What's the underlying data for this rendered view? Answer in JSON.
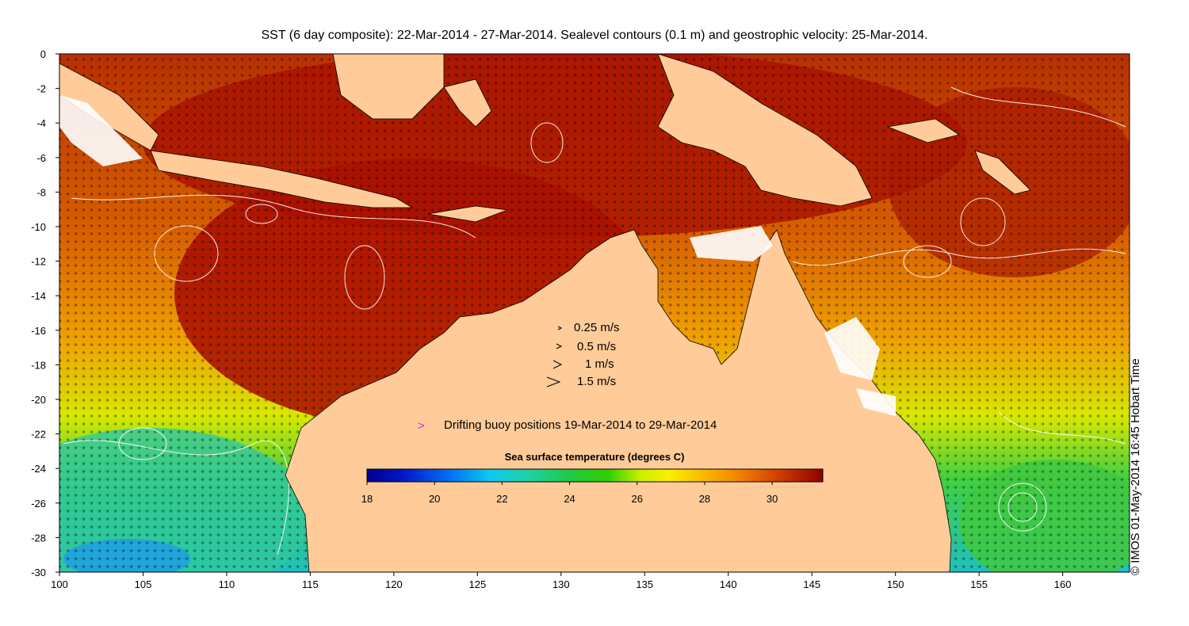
{
  "title": "SST (6 day composite): 22-Mar-2014 - 27-Mar-2014. Sealevel contours (0.1 m) and geostrophic velocity: 25-Mar-2014.",
  "credit": "© IMOS 01-May-2014 16:45 Hobart Time",
  "axes": {
    "x_ticks": [
      "100",
      "105",
      "110",
      "115",
      "120",
      "125",
      "130",
      "135",
      "140",
      "145",
      "150",
      "155",
      "160"
    ],
    "y_ticks": [
      "0",
      "-2",
      "-4",
      "-6",
      "-8",
      "-10",
      "-12",
      "-14",
      "-16",
      "-18",
      "-20",
      "-22",
      "-24",
      "-26",
      "-28",
      "-30"
    ],
    "lon_range": [
      100,
      164
    ],
    "lat_range": [
      -30,
      0
    ]
  },
  "velocity_legend": {
    "items": [
      {
        "label": "0.25 m/s",
        "speed": 0.25
      },
      {
        "label": "0.5 m/s",
        "speed": 0.5
      },
      {
        "label": "1 m/s",
        "speed": 1
      },
      {
        "label": "1.5 m/s",
        "speed": 1.5
      }
    ]
  },
  "buoy_legend": {
    "symbol": ">",
    "label": "Drifting buoy positions 19-Mar-2014 to 29-Mar-2014",
    "color": "#e020e0"
  },
  "colorbar": {
    "title": "Sea surface temperature (degrees C)",
    "ticks": [
      "18",
      "20",
      "22",
      "24",
      "26",
      "28",
      "30"
    ],
    "range": [
      18,
      31.5
    ]
  },
  "colors": {
    "land": "#ffcc99",
    "frame": "#000000",
    "contour": "#ffffff",
    "vector": "#000000"
  }
}
